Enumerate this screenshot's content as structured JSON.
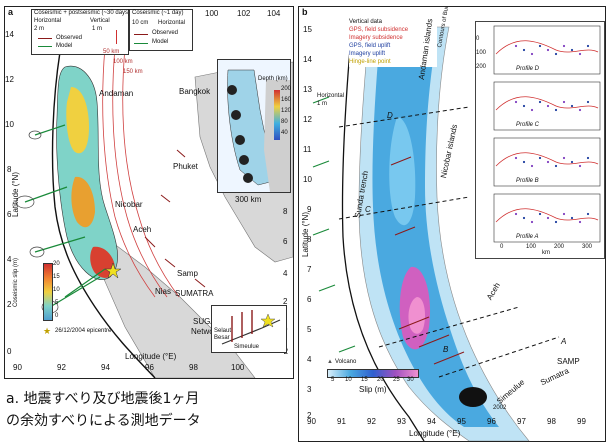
{
  "panel_a": {
    "label": "a",
    "legend_left": {
      "title": "Coseismic + postseismic (~30 days)",
      "horizontal": "Horizontal",
      "vertical": "Vertical",
      "scale_h": "2 m",
      "scale_v": "1 m",
      "observed": "Observed",
      "model": "Model"
    },
    "legend_right": {
      "title": "Coseismic (~1 day)",
      "scale": "10 cm",
      "horizontal": "Horizontal",
      "observed": "Observed",
      "model": "Model"
    },
    "top_ticks": [
      "100",
      "102",
      "104"
    ],
    "x_ticks": [
      "90",
      "92",
      "94",
      "96",
      "98",
      "100"
    ],
    "y_ticks": [
      "0",
      "2",
      "4",
      "6",
      "8",
      "10",
      "12",
      "14"
    ],
    "right_ticks": [
      "8",
      "6",
      "4",
      "2",
      "0",
      "−2"
    ],
    "xlabel": "Longitude (°E)",
    "ylabel": "Latitude (°N)",
    "places": {
      "andaman": "Andaman",
      "nicobar": "Nicobar",
      "aceh": "Aceh",
      "phuket": "Phuket",
      "bangkok": "Bangkok",
      "samp": "Samp",
      "nias": "Nias",
      "sumatra": "SUMATRA",
      "sugar": "SUGAR",
      "network": "Network",
      "selaut": "Selaut",
      "besar": "Besar",
      "simeulue": "Simeulue"
    },
    "depth_contours": [
      "50 km",
      "100 km",
      "150 km"
    ],
    "slip_colorbar": {
      "title": "Coseismic slip (m)",
      "ticks": [
        "20",
        "15",
        "10",
        "5",
        "0"
      ]
    },
    "inset": {
      "scale": "300 km",
      "depth_title": "Depth (km)",
      "depth_ticks": [
        "200",
        "160",
        "120",
        "80",
        "40"
      ]
    },
    "epicentre": "26/12/2004 epicentre"
  },
  "panel_b": {
    "label": "b",
    "legend": {
      "title": "Vertical data",
      "items": [
        "GPS, field subsidence",
        "Imagery subsidence",
        "GPS, field uplift",
        "Imagery uplift",
        "Hinge-line point"
      ]
    },
    "horizontal_scale": "Horizontal",
    "scale_len": "1 m",
    "contour_label": "Contours of Burma Plate",
    "x_ticks": [
      "90",
      "91",
      "92",
      "93",
      "94",
      "95",
      "96",
      "97",
      "98",
      "99"
    ],
    "y_ticks": [
      "15",
      "14",
      "13",
      "12",
      "11",
      "10",
      "9",
      "8",
      "7",
      "6",
      "5",
      "4",
      "3",
      "2"
    ],
    "xlabel": "Longitude (°E)",
    "ylabel": "Latitude (°N)",
    "places": {
      "andaman_islands": "Andaman islands",
      "nicobar_islands": "Nicobar islands",
      "sunda_trench": "Sunda trench",
      "aceh": "Aceh",
      "sumatra": "Sumatra",
      "samp": "SAMP",
      "simeulue": "Simeulue",
      "year2002": "2002"
    },
    "profile_letters": [
      "D",
      "C",
      "B",
      "A"
    ],
    "volcano": "Volcano",
    "slip_colorbar": {
      "title": "Slip (m)",
      "ticks": [
        "5",
        "10",
        "15",
        "20",
        "25",
        "30"
      ]
    },
    "profiles": [
      {
        "name": "Profile D",
        "ylabel1": "Depth (km)",
        "ylabel2": "Slip (m)"
      },
      {
        "name": "Profile C",
        "ylabel1": "Depth (km)",
        "ylabel2": "Slip (m)"
      },
      {
        "name": "Profile B",
        "ylabel1": "Depth (km)",
        "ylabel2": "Slip (m)"
      },
      {
        "name": "Profile A",
        "ylabel1": "Depth (km)",
        "ylabel2": "Slip (m)"
      }
    ],
    "profile_x_ticks": [
      "0",
      "100",
      "200",
      "300"
    ],
    "profile_y_ticks": [
      "0",
      "100",
      "200"
    ],
    "profile_xlabel": "km"
  },
  "caption": {
    "line1": "a. 地震すべり及び地震後1ヶ月",
    "line2": "の余効すべりによる測地データ"
  }
}
